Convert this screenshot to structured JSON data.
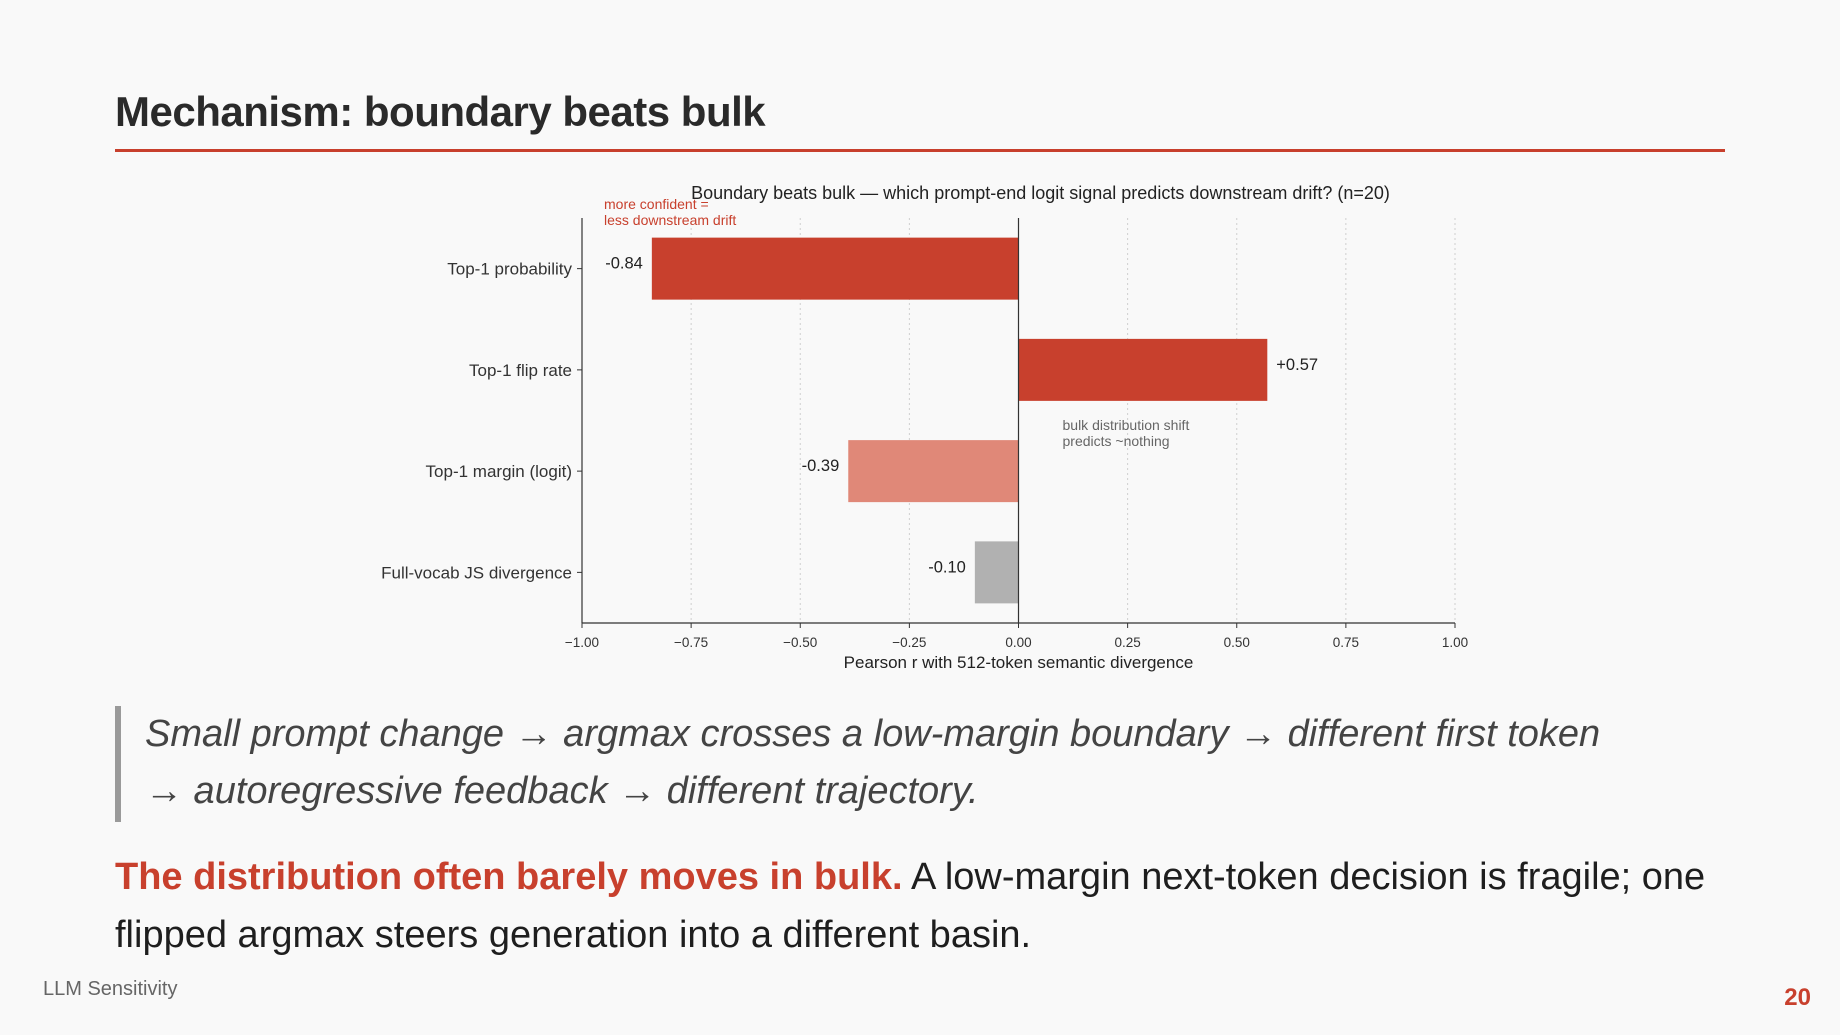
{
  "slide": {
    "title": "Mechanism: boundary beats bulk",
    "accent_color": "#c8402d"
  },
  "chart_data": {
    "type": "bar",
    "orientation": "horizontal",
    "title": "Boundary beats bulk  —  which prompt-end logit signal predicts downstream drift?  (n=20)",
    "xlabel": "Pearson r  with  512-token semantic divergence",
    "ylabel": "",
    "xlim": [
      -1.0,
      1.0
    ],
    "x_ticks": [
      "−1.00",
      "−0.75",
      "−0.50",
      "−0.25",
      "0.00",
      "0.25",
      "0.50",
      "0.75",
      "1.00"
    ],
    "x_tick_values": [
      -1.0,
      -0.75,
      -0.5,
      -0.25,
      0.0,
      0.25,
      0.5,
      0.75,
      1.0
    ],
    "grid": "vertical dotted",
    "categories": [
      "Top-1 probability",
      "Top-1 flip rate",
      "Top-1 margin (logit)",
      "Full-vocab JS divergence"
    ],
    "values": [
      -0.84,
      0.57,
      -0.39,
      -0.1
    ],
    "value_labels": [
      "-0.84",
      "+0.57",
      "-0.39",
      "-0.10"
    ],
    "bar_colors": [
      "#c8402d",
      "#c8402d",
      "#e08878",
      "#b1b1b1"
    ],
    "annotations": [
      {
        "lines": [
          "more confident =",
          "less downstream drift"
        ],
        "color": "#c8402d",
        "placement": "top-left"
      },
      {
        "lines": [
          "bulk distribution shift",
          "predicts ~nothing"
        ],
        "color": "#666666",
        "placement": "right of zero, between bars 2 and 3"
      }
    ]
  },
  "quote": {
    "line1": "Small prompt change → argmax crosses a low-margin boundary → different first token",
    "line2": "→ autoregressive feedback → different trajectory."
  },
  "takeaway": {
    "emphasis": "The distribution often barely moves in bulk.",
    "rest": " A low-margin next-token decision is fragile; one flipped argmax steers generation into a different basin."
  },
  "footer": {
    "deck_name": "LLM Sensitivity",
    "page_number": "20"
  }
}
